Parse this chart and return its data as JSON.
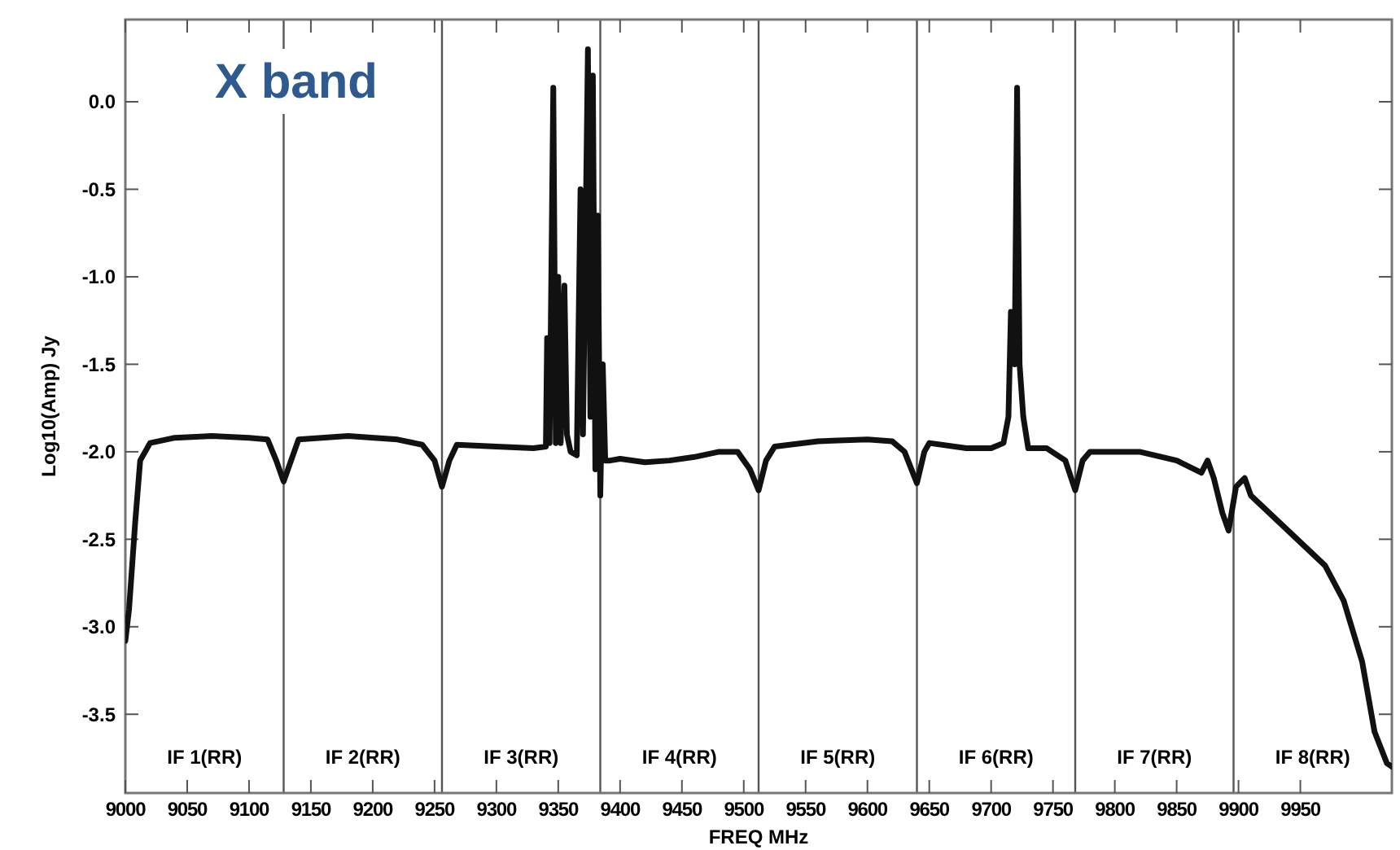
{
  "chart_data": {
    "type": "line",
    "xlabel": "FREQ MHz",
    "ylabel": "Log10(Amp) Jy",
    "xlim": [
      9000,
      10024
    ],
    "ylim": [
      -3.95,
      0.47
    ],
    "xticks": [
      9000,
      9050,
      9100,
      9150,
      9200,
      9250,
      9300,
      9350,
      9400,
      9450,
      9500,
      9550,
      9600,
      9650,
      9700,
      9750,
      9800,
      9850,
      9900,
      9950
    ],
    "yticks": [
      {
        "value": 0,
        "label": "0.0"
      },
      {
        "value": -0.5,
        "label": "-0.5"
      },
      {
        "value": -1,
        "label": "-1.0"
      },
      {
        "value": -1.5,
        "label": "-1.5"
      },
      {
        "value": -2,
        "label": "-2.0"
      },
      {
        "value": -2.5,
        "label": "-2.5"
      },
      {
        "value": -3,
        "label": "-3.0"
      },
      {
        "value": -3.5,
        "label": "-3.5"
      }
    ],
    "grid": false,
    "marker": "none",
    "line_style": "solid",
    "series": [
      {
        "color": "#111111",
        "x": [
          9000,
          9003,
          9008,
          9012,
          9020,
          9040,
          9070,
          9100,
          9115,
          9122,
          9128,
          9134,
          9140,
          9180,
          9220,
          9240,
          9250,
          9256,
          9262,
          9268,
          9300,
          9330,
          9340,
          9341,
          9343,
          9346,
          9348,
          9350,
          9352,
          9355,
          9357,
          9360,
          9365,
          9368,
          9370,
          9374,
          9376,
          9378,
          9380,
          9382,
          9384,
          9386,
          9388,
          9392,
          9400,
          9420,
          9440,
          9460,
          9480,
          9495,
          9505,
          9512,
          9518,
          9525,
          9560,
          9600,
          9620,
          9630,
          9640,
          9646,
          9650,
          9680,
          9700,
          9710,
          9714,
          9716,
          9719,
          9721,
          9723,
          9726,
          9730,
          9745,
          9760,
          9768,
          9774,
          9780,
          9820,
          9850,
          9870,
          9875,
          9880,
          9887,
          9892,
          9898,
          9905,
          9910,
          9940,
          9970,
          9985,
          10000,
          10010,
          10020,
          10024
        ],
        "values": [
          -3.08,
          -2.9,
          -2.4,
          -2.05,
          -1.95,
          -1.92,
          -1.91,
          -1.92,
          -1.93,
          -2.05,
          -2.17,
          -2.05,
          -1.93,
          -1.91,
          -1.93,
          -1.96,
          -2.05,
          -2.2,
          -2.05,
          -1.96,
          -1.97,
          -1.98,
          -1.97,
          -1.35,
          -1.95,
          0.08,
          -1.95,
          -1.0,
          -1.95,
          -1.05,
          -1.9,
          -2.0,
          -2.02,
          -0.5,
          -1.9,
          0.3,
          -1.8,
          0.15,
          -2.1,
          -0.65,
          -2.25,
          -1.5,
          -2.05,
          -2.05,
          -2.04,
          -2.06,
          -2.05,
          -2.03,
          -2.0,
          -2.0,
          -2.1,
          -2.22,
          -2.05,
          -1.97,
          -1.94,
          -1.93,
          -1.94,
          -2.0,
          -2.18,
          -2.0,
          -1.95,
          -1.98,
          -1.98,
          -1.95,
          -1.8,
          -1.2,
          -1.5,
          0.08,
          -1.5,
          -1.8,
          -1.98,
          -1.98,
          -2.05,
          -2.22,
          -2.05,
          -2.0,
          -2.0,
          -2.05,
          -2.12,
          -2.05,
          -2.15,
          -2.35,
          -2.45,
          -2.2,
          -2.15,
          -2.25,
          -2.45,
          -2.65,
          -2.85,
          -3.2,
          -3.6,
          -3.78,
          -3.8
        ]
      }
    ],
    "ref_lines": [
      {
        "axis": "x",
        "value": 9128
      },
      {
        "axis": "x",
        "value": 9256
      },
      {
        "axis": "x",
        "value": 9384
      },
      {
        "axis": "x",
        "value": 9512
      },
      {
        "axis": "x",
        "value": 9640
      },
      {
        "axis": "x",
        "value": 9768
      },
      {
        "axis": "x",
        "value": 9896
      }
    ],
    "annotations": [
      "X band",
      "IF 1(RR)",
      "IF 2(RR)",
      "IF 3(RR)",
      "IF 4(RR)",
      "IF 5(RR)",
      "IF 6(RR)",
      "IF 7(RR)",
      "IF 8(RR)"
    ]
  }
}
